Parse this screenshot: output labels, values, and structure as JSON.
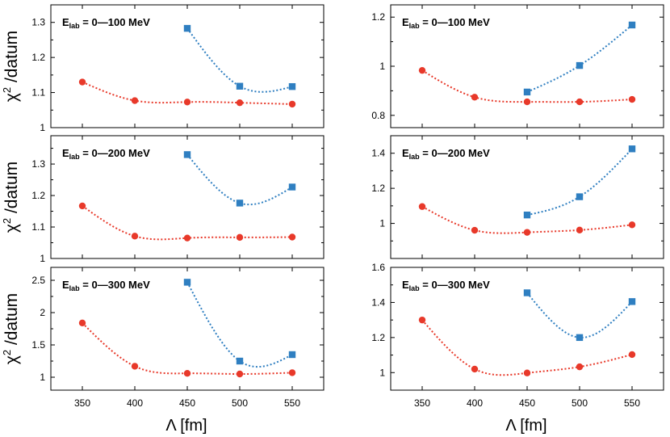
{
  "x_axis_label": "Λ [fm]",
  "y_axis_label_text": "χ",
  "y_axis_label_sup": "2",
  "y_axis_label_suffix": " /datum",
  "colors": {
    "red": "#e8392a",
    "blue": "#2f7fc1"
  },
  "chart_data": [
    {
      "type": "line",
      "position": "top-left",
      "label_main": "E",
      "label_sub": "lab",
      "label_rest": " = 0—100 MeV",
      "xlim": [
        320,
        580
      ],
      "xticks": [
        350,
        400,
        450,
        500,
        550
      ],
      "ylim": [
        1.0,
        1.35
      ],
      "yticks": [
        1.0,
        1.1,
        1.2,
        1.3
      ],
      "ytick_labels": [
        "1",
        "1.1",
        "1.2",
        "1.3"
      ],
      "show_xtick_labels": false,
      "series": [
        {
          "name": "red-circles",
          "color": "#e8392a",
          "marker": "circle",
          "x": [
            350,
            400,
            450,
            500,
            550
          ],
          "y": [
            1.13,
            1.077,
            1.073,
            1.071,
            1.067
          ]
        },
        {
          "name": "blue-squares",
          "color": "#2f7fc1",
          "marker": "square",
          "x": [
            450,
            500,
            550
          ],
          "y": [
            1.283,
            1.118,
            1.117
          ]
        }
      ]
    },
    {
      "type": "line",
      "position": "top-right",
      "label_main": "E",
      "label_sub": "lab",
      "label_rest": " = 0—100 MeV",
      "xlim": [
        320,
        580
      ],
      "xticks": [
        350,
        400,
        450,
        500,
        550
      ],
      "ylim": [
        0.75,
        1.25
      ],
      "yticks": [
        0.8,
        1.0,
        1.2
      ],
      "ytick_labels": [
        "0.8",
        "1",
        "1.2"
      ],
      "show_xtick_labels": false,
      "series": [
        {
          "name": "red-circles",
          "color": "#e8392a",
          "marker": "circle",
          "x": [
            350,
            400,
            450,
            500,
            550
          ],
          "y": [
            0.983,
            0.874,
            0.855,
            0.855,
            0.865
          ]
        },
        {
          "name": "blue-squares",
          "color": "#2f7fc1",
          "marker": "square",
          "x": [
            450,
            500,
            550
          ],
          "y": [
            0.895,
            1.003,
            1.168
          ]
        }
      ]
    },
    {
      "type": "line",
      "position": "middle-left",
      "label_main": "E",
      "label_sub": "lab",
      "label_rest": " = 0—200 MeV",
      "xlim": [
        320,
        580
      ],
      "xticks": [
        350,
        400,
        450,
        500,
        550
      ],
      "ylim": [
        1.0,
        1.39
      ],
      "yticks": [
        1.0,
        1.1,
        1.2,
        1.3
      ],
      "ytick_labels": [
        "1",
        "1.1",
        "1.2",
        "1.3"
      ],
      "show_xtick_labels": false,
      "series": [
        {
          "name": "red-circles",
          "color": "#e8392a",
          "marker": "circle",
          "x": [
            350,
            400,
            450,
            500,
            550
          ],
          "y": [
            1.167,
            1.071,
            1.065,
            1.067,
            1.068
          ]
        },
        {
          "name": "blue-squares",
          "color": "#2f7fc1",
          "marker": "square",
          "x": [
            450,
            500,
            550
          ],
          "y": [
            1.33,
            1.176,
            1.227
          ]
        }
      ]
    },
    {
      "type": "line",
      "position": "middle-right",
      "label_main": "E",
      "label_sub": "lab",
      "label_rest": " = 0—200 MeV",
      "xlim": [
        320,
        580
      ],
      "xticks": [
        350,
        400,
        450,
        500,
        550
      ],
      "ylim": [
        0.8,
        1.5
      ],
      "yticks": [
        1.0,
        1.2,
        1.4
      ],
      "ytick_labels": [
        "1",
        "1.2",
        "1.4"
      ],
      "show_xtick_labels": false,
      "series": [
        {
          "name": "red-circles",
          "color": "#e8392a",
          "marker": "circle",
          "x": [
            350,
            400,
            450,
            500,
            550
          ],
          "y": [
            1.096,
            0.961,
            0.949,
            0.962,
            0.992
          ]
        },
        {
          "name": "blue-squares",
          "color": "#2f7fc1",
          "marker": "square",
          "x": [
            450,
            500,
            550
          ],
          "y": [
            1.048,
            1.152,
            1.425
          ]
        }
      ]
    },
    {
      "type": "line",
      "position": "bottom-left",
      "label_main": "E",
      "label_sub": "lab",
      "label_rest": " = 0—300 MeV",
      "xlim": [
        320,
        580
      ],
      "xticks": [
        350,
        400,
        450,
        500,
        550
      ],
      "ylim": [
        0.8,
        2.7
      ],
      "yticks": [
        1.0,
        1.5,
        2.0,
        2.5
      ],
      "ytick_labels": [
        "1",
        "1.5",
        "2",
        "2.5"
      ],
      "show_xtick_labels": true,
      "xtick_labels": [
        "350",
        "400",
        "450",
        "500",
        "550"
      ],
      "series": [
        {
          "name": "red-circles",
          "color": "#e8392a",
          "marker": "circle",
          "x": [
            350,
            400,
            450,
            500,
            550
          ],
          "y": [
            1.84,
            1.17,
            1.06,
            1.05,
            1.07
          ]
        },
        {
          "name": "blue-squares",
          "color": "#2f7fc1",
          "marker": "square",
          "x": [
            450,
            500,
            550
          ],
          "y": [
            2.47,
            1.25,
            1.35
          ]
        }
      ]
    },
    {
      "type": "line",
      "position": "bottom-right",
      "label_main": "E",
      "label_sub": "lab",
      "label_rest": " = 0—300 MeV",
      "xlim": [
        320,
        580
      ],
      "xticks": [
        350,
        400,
        450,
        500,
        550
      ],
      "ylim": [
        0.9,
        1.6
      ],
      "yticks": [
        1.0,
        1.2,
        1.4,
        1.6
      ],
      "ytick_labels": [
        "1",
        "1.2",
        "1.4",
        "1.6"
      ],
      "show_xtick_labels": true,
      "xtick_labels": [
        "350",
        "400",
        "450",
        "500",
        "550"
      ],
      "series": [
        {
          "name": "red-circles",
          "color": "#e8392a",
          "marker": "circle",
          "x": [
            350,
            400,
            450,
            500,
            550
          ],
          "y": [
            1.3,
            1.02,
            0.998,
            1.033,
            1.103
          ]
        },
        {
          "name": "blue-squares",
          "color": "#2f7fc1",
          "marker": "square",
          "x": [
            450,
            500,
            550
          ],
          "y": [
            1.455,
            1.2,
            1.405
          ]
        }
      ]
    }
  ]
}
